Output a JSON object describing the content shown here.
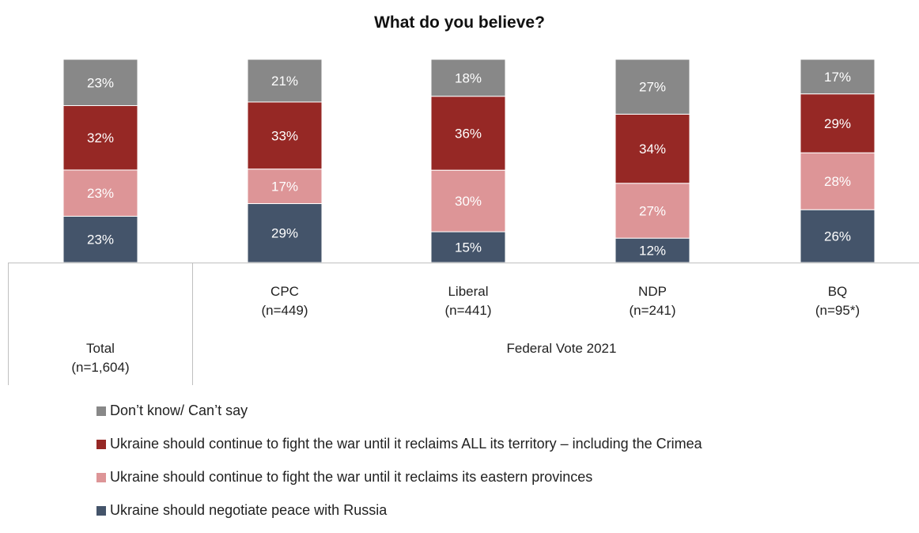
{
  "chart_data": {
    "type": "bar",
    "stacked": true,
    "title": "What do you believe?",
    "categories": [
      {
        "label": "Total",
        "sublabel": "(n=1,604)"
      },
      {
        "label": "CPC",
        "sublabel": "(n=449)"
      },
      {
        "label": "Liberal",
        "sublabel": "(n=441)"
      },
      {
        "label": "NDP",
        "sublabel": "(n=241)"
      },
      {
        "label": "BQ",
        "sublabel": "(n=95*)"
      }
    ],
    "group_label": "Federal Vote 2021",
    "series": [
      {
        "name": "Ukraine should negotiate peace with Russia",
        "color": "#44546a",
        "values": [
          23,
          29,
          15,
          12,
          26
        ],
        "labels": [
          "23%",
          "29%",
          "15%",
          "12%",
          "26%"
        ]
      },
      {
        "name": "Ukraine should continue to fight the war until it reclaims its eastern provinces",
        "color": "#dd9597",
        "values": [
          23,
          17,
          30,
          27,
          28
        ],
        "labels": [
          "23%",
          "17%",
          "30%",
          "27%",
          "28%"
        ]
      },
      {
        "name": "Ukraine should continue to fight the war until it reclaims ALL its territory – including the Crimea",
        "color": "#962825",
        "values": [
          32,
          33,
          36,
          34,
          29
        ],
        "labels": [
          "32%",
          "33%",
          "36%",
          "34%",
          "29%"
        ]
      },
      {
        "name": "Don’t know/ Can’t say",
        "color": "#888888",
        "values": [
          23,
          21,
          18,
          27,
          17
        ],
        "labels": [
          "23%",
          "21%",
          "18%",
          "27%",
          "17%"
        ]
      }
    ],
    "legend": [
      "Don’t know/ Can’t say",
      "Ukraine should continue to fight the war until it reclaims ALL its territory – including the Crimea",
      "Ukraine should continue to fight the war until it reclaims its eastern provinces",
      "Ukraine should negotiate peace with Russia"
    ],
    "legend_colors": [
      "#888888",
      "#962825",
      "#dd9597",
      "#44546a"
    ],
    "legend_position": "bottom",
    "ylim": [
      0,
      100
    ],
    "grid": false
  }
}
